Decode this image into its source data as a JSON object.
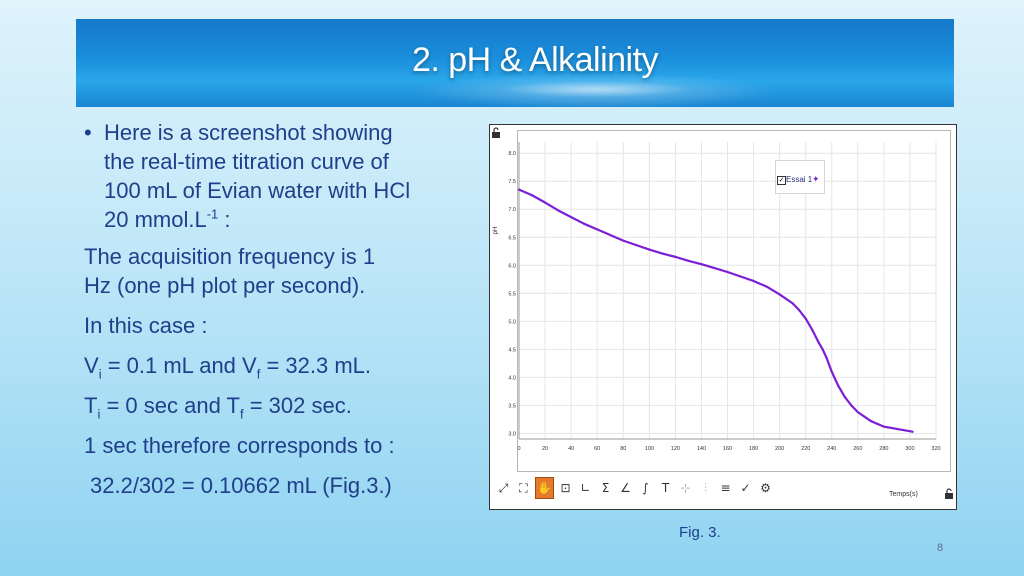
{
  "slide": {
    "title": "2. pH & Alkalinity",
    "page_number": "8"
  },
  "body": {
    "bullet_line1": "Here is a screenshot showing",
    "bullet_line2": "the real-time titration curve of",
    "bullet_line3": "100 mL of Evian water with HCl",
    "bullet_line4a": "20 mmol.L",
    "bullet_line4_sup": "-1",
    "bullet_line4b": " :",
    "para1_line1": "The acquisition frequency is 1",
    "para1_line2": "Hz (one pH plot per second).",
    "para2": "In this case :",
    "vi_a": "V",
    "vi_sub": "i",
    "vi_b": " = 0.1 mL and V",
    "vf_sub": "f",
    "vf_b": " = 32.3 mL.",
    "ti_a": "T",
    "ti_sub": "i",
    "ti_b": " = 0 sec and T",
    "tf_sub": "f",
    "tf_b": " = 302 sec.",
    "para3": "1 sec therefore corresponds to :",
    "para4": "32.2/302 = 0.10662 mL (Fig.3.)"
  },
  "figure": {
    "caption": "Fig. 3.",
    "legend_label": "Essai 1",
    "legend_marker": "✦",
    "xaxis_label": "Temps(s)",
    "yaxis_label": "pH",
    "toolbar_icons": [
      "fit-axes",
      "zoom-region",
      "pan-hand",
      "center",
      "tangent",
      "sum",
      "derivative",
      "integral",
      "text-T",
      "add-point",
      "distribution",
      "linear-fit",
      "check",
      "settings"
    ]
  },
  "chart_data": {
    "type": "line",
    "xlabel": "Temps(s)",
    "ylabel": "pH",
    "xlim": [
      0,
      320
    ],
    "ylim": [
      2.9,
      8.2
    ],
    "xticks": [
      0,
      20,
      40,
      60,
      80,
      100,
      120,
      140,
      160,
      180,
      200,
      220,
      240,
      260,
      280,
      300,
      320
    ],
    "yticks": [
      3.0,
      3.5,
      4.0,
      4.5,
      5.0,
      5.5,
      6.0,
      6.5,
      7.0,
      7.5,
      8.0
    ],
    "grid": true,
    "legend": "top-right",
    "series": [
      {
        "name": "Essai 1",
        "color": "#7b1fd6",
        "x": [
          0,
          10,
          20,
          30,
          40,
          50,
          60,
          70,
          80,
          90,
          100,
          110,
          120,
          130,
          140,
          150,
          160,
          170,
          180,
          190,
          200,
          210,
          215,
          220,
          225,
          230,
          233,
          236,
          240,
          245,
          250,
          255,
          260,
          265,
          270,
          275,
          280,
          290,
          302
        ],
        "y": [
          7.35,
          7.25,
          7.12,
          6.98,
          6.86,
          6.74,
          6.64,
          6.54,
          6.44,
          6.36,
          6.28,
          6.21,
          6.15,
          6.08,
          6.02,
          5.95,
          5.88,
          5.8,
          5.72,
          5.62,
          5.48,
          5.32,
          5.2,
          5.05,
          4.85,
          4.62,
          4.5,
          4.35,
          4.1,
          3.85,
          3.65,
          3.5,
          3.38,
          3.3,
          3.22,
          3.17,
          3.12,
          3.08,
          3.03
        ]
      }
    ]
  }
}
